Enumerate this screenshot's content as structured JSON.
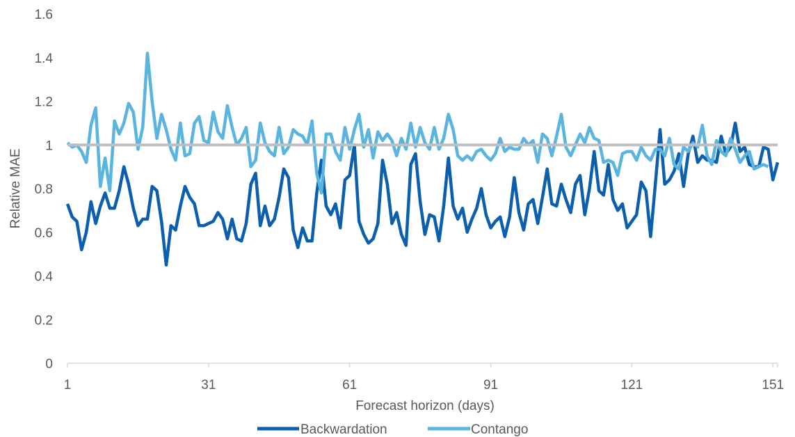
{
  "chart_data": {
    "type": "line",
    "xlabel": "Forecast horizon (days)",
    "ylabel": "Relative MAE",
    "ylim": [
      0,
      1.6
    ],
    "xlim": [
      1,
      152
    ],
    "y_ticks": [
      "0",
      "0.2",
      "0.4",
      "0.6",
      "0.8",
      "1",
      "1.2",
      "1.4",
      "1.6"
    ],
    "x_ticks": [
      "1",
      "31",
      "61",
      "91",
      "121",
      "151"
    ],
    "grid": false,
    "legend_position": "bottom",
    "reference_line": {
      "value": 1,
      "color": "#BFBFBF"
    },
    "series": [
      {
        "name": "Backwardation",
        "color": "#0B5FAD",
        "values": [
          0.73,
          0.67,
          0.65,
          0.52,
          0.6,
          0.74,
          0.64,
          0.72,
          0.78,
          0.71,
          0.71,
          0.79,
          0.9,
          0.82,
          0.71,
          0.63,
          0.66,
          0.66,
          0.81,
          0.79,
          0.65,
          0.45,
          0.63,
          0.61,
          0.72,
          0.81,
          0.76,
          0.73,
          0.63,
          0.63,
          0.64,
          0.65,
          0.69,
          0.66,
          0.57,
          0.66,
          0.57,
          0.56,
          0.64,
          0.82,
          0.87,
          0.63,
          0.72,
          0.63,
          0.66,
          0.76,
          0.89,
          0.85,
          0.61,
          0.53,
          0.62,
          0.56,
          0.56,
          0.78,
          0.93,
          0.72,
          0.68,
          0.73,
          0.62,
          0.84,
          0.86,
          1.0,
          0.65,
          0.59,
          0.55,
          0.57,
          0.64,
          0.93,
          0.82,
          0.64,
          0.69,
          0.59,
          0.54,
          0.91,
          0.96,
          0.74,
          0.59,
          0.68,
          0.67,
          0.56,
          0.72,
          0.94,
          0.72,
          0.66,
          0.71,
          0.6,
          0.66,
          0.71,
          0.8,
          0.68,
          0.62,
          0.65,
          0.67,
          0.58,
          0.67,
          0.85,
          0.69,
          0.61,
          0.73,
          0.75,
          0.64,
          0.76,
          0.89,
          0.73,
          0.72,
          0.82,
          0.75,
          0.69,
          0.82,
          0.86,
          0.68,
          0.8,
          0.97,
          0.79,
          0.77,
          0.91,
          0.75,
          0.7,
          0.73,
          0.62,
          0.65,
          0.68,
          0.83,
          0.79,
          0.58,
          0.82,
          1.07,
          0.82,
          0.84,
          0.88,
          0.96,
          0.81,
          0.96,
          1.04,
          0.92,
          0.95,
          0.93,
          0.93,
          0.92,
          1.04,
          0.96,
          0.99,
          1.1,
          0.97,
          0.99,
          0.91,
          0.9,
          0.9,
          0.99,
          0.98,
          0.84,
          0.92
        ]
      },
      {
        "name": "Contango",
        "color": "#5AB4E0",
        "values": [
          1.01,
          0.99,
          1.0,
          0.97,
          0.92,
          1.09,
          1.17,
          0.81,
          0.94,
          0.79,
          1.11,
          1.05,
          1.1,
          1.19,
          1.15,
          0.98,
          1.08,
          1.42,
          1.2,
          1.03,
          1.14,
          1.07,
          0.98,
          0.93,
          1.1,
          0.95,
          0.96,
          1.1,
          1.13,
          1.02,
          1.01,
          1.15,
          1.06,
          1.03,
          1.18,
          1.08,
          1.0,
          1.03,
          1.08,
          0.9,
          0.93,
          1.1,
          1.01,
          0.97,
          0.95,
          1.08,
          0.96,
          0.99,
          1.07,
          1.05,
          1.04,
          1.0,
          1.11,
          0.87,
          0.78,
          1.05,
          1.05,
          0.97,
          0.93,
          1.08,
          0.98,
          1.07,
          1.14,
          0.99,
          1.07,
          0.94,
          1.06,
          1.02,
          1.05,
          1.02,
          0.95,
          1.03,
          0.98,
          1.1,
          0.99,
          1.08,
          1.01,
          0.98,
          1.08,
          0.98,
          1.03,
          1.14,
          1.07,
          0.95,
          0.93,
          0.95,
          0.93,
          0.97,
          0.98,
          0.95,
          0.93,
          0.96,
          1.03,
          0.97,
          0.99,
          0.98,
          0.98,
          1.03,
          1.0,
          1.02,
          0.92,
          1.05,
          1.03,
          0.95,
          1.04,
          1.14,
          0.99,
          0.95,
          1.0,
          1.05,
          1.01,
          1.08,
          1.03,
          1.02,
          0.92,
          0.93,
          0.92,
          0.86,
          0.96,
          0.97,
          0.97,
          0.93,
          0.99,
          0.95,
          0.93,
          0.98,
          0.98,
          0.95,
          1.03,
          0.91,
          0.89,
          0.99,
          0.97,
          1.01,
          0.99,
          1.09,
          0.95,
          0.91,
          1.02,
          0.97,
          0.95,
          1.03,
          0.98,
          0.92,
          0.95,
          0.97,
          0.89,
          0.9,
          0.91,
          0.9
        ]
      }
    ]
  }
}
